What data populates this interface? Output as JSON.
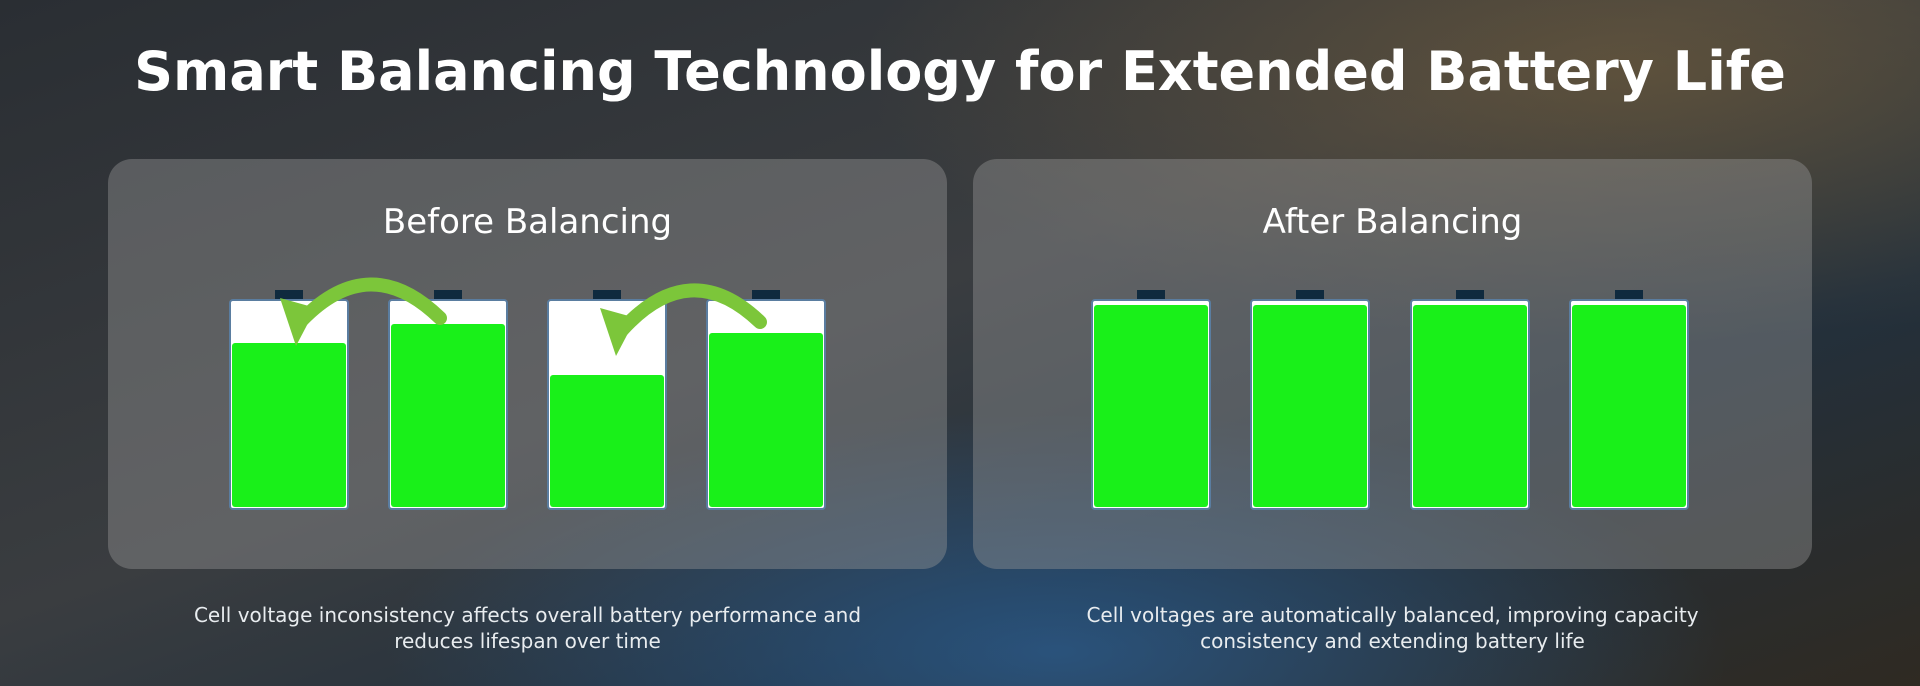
{
  "header": {
    "title": "Smart Balancing Technology for Extended Battery Life"
  },
  "panels": [
    {
      "title": "Before Balancing",
      "caption": [
        "Cell voltage inconsistency affects overall battery performance and",
        "reduces lifespan over time"
      ]
    },
    {
      "title": "After Balancing",
      "caption": [
        "Cell voltages are automatically balanced, improving capacity",
        "consistency and extending battery life"
      ]
    }
  ]
}
